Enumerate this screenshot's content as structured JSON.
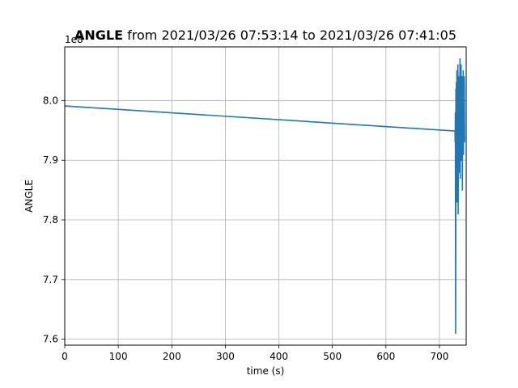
{
  "chart_data": {
    "type": "line",
    "title_bold": "ANGLE",
    "title_rest": " from 2021/03/26 07:53:14 to 2021/03/26 07:41:05",
    "xlabel": "time (s)",
    "ylabel": "ANGLE",
    "offset_label": "1e8",
    "xlim": [
      0,
      750
    ],
    "ylim": [
      7.59,
      8.09
    ],
    "x_ticks": [
      0,
      100,
      200,
      300,
      400,
      500,
      600,
      700
    ],
    "y_ticks": [
      7.6,
      7.7,
      7.8,
      7.9,
      8.0
    ],
    "grid": true,
    "color": "#1f77b4",
    "series": [
      {
        "x": [
          0,
          729,
          729.4,
          729.8,
          730.3,
          730.8,
          731.2,
          731.7,
          732.2,
          732.6,
          733.0,
          733.5,
          734.0,
          734.5,
          735.0,
          735.4,
          735.9,
          736.4,
          736.9,
          737.4,
          737.9,
          738.4,
          738.9,
          739.4,
          739.9,
          740.4,
          740.9,
          741.4,
          741.9,
          742.4,
          742.9,
          743.4,
          743.9,
          744.4,
          744.9,
          745.4,
          745.9,
          746.4,
          747.0
        ],
        "y": [
          7.991,
          7.949,
          7.93,
          7.98,
          7.61,
          8.02,
          7.9,
          8.03,
          7.85,
          8.05,
          7.83,
          8.02,
          7.9,
          8.06,
          7.81,
          8.03,
          7.92,
          8.04,
          7.88,
          8.02,
          7.95,
          8.07,
          7.87,
          8.03,
          7.94,
          8.06,
          7.9,
          8.02,
          7.96,
          8.04,
          7.85,
          8.03,
          7.93,
          8.05,
          7.91,
          8.02,
          7.96,
          8.04,
          7.93
        ]
      }
    ]
  }
}
